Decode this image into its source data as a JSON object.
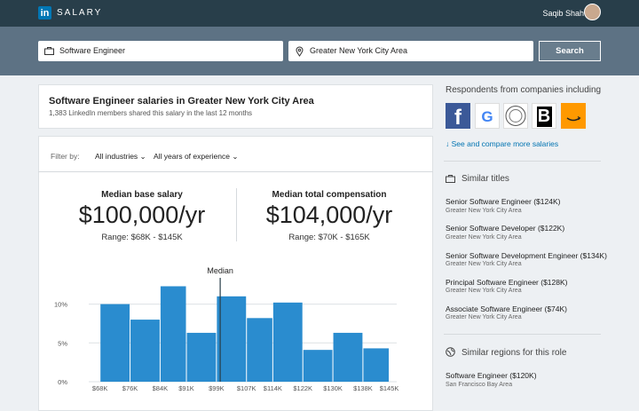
{
  "header": {
    "logo": "in",
    "app": "SALARY",
    "user": "Saqib Shah"
  },
  "search": {
    "title": "Software Engineer",
    "location": "Greater New York City Area",
    "button": "Search"
  },
  "summary": {
    "title": "Software Engineer salaries in Greater New York City Area",
    "subtitle": "1,383 LinkedIn members shared this salary in the last 12 months"
  },
  "filters": {
    "label": "Filter by:",
    "options": [
      "All industries",
      "All years of experience"
    ]
  },
  "stats": [
    {
      "label": "Median base salary",
      "value": "$100,000/yr",
      "range": "Range: $68K - $145K"
    },
    {
      "label": "Median total compensation",
      "value": "$104,000/yr",
      "range": "Range: $70K - $165K"
    }
  ],
  "chart_data": {
    "type": "histogram",
    "annotation": "Median",
    "median": 100,
    "bins": [
      68,
      76,
      84,
      91,
      99,
      107,
      114,
      122,
      130,
      138,
      145
    ],
    "values": [
      10,
      8,
      12.3,
      6.3,
      11,
      8.2,
      10.2,
      4.1,
      6.3,
      4.3
    ],
    "color": "#2a8ccf",
    "grid": true,
    "xlim": [
      65,
      147
    ],
    "xticks": [
      {
        "value": 68,
        "label": "$68K"
      },
      {
        "value": 76,
        "label": "$76K"
      },
      {
        "value": 84,
        "label": "$84K"
      },
      {
        "value": 91,
        "label": "$91K"
      },
      {
        "value": 99,
        "label": "$99K"
      },
      {
        "value": 107,
        "label": "$107K"
      },
      {
        "value": 114,
        "label": "$114K"
      },
      {
        "value": 122,
        "label": "$122K"
      },
      {
        "value": 130,
        "label": "$130K"
      },
      {
        "value": 138,
        "label": "$138K"
      },
      {
        "value": 145,
        "label": "$145K"
      }
    ],
    "ylim": [
      0,
      14.3
    ],
    "yticks": [
      {
        "value": 0,
        "label": "0%"
      },
      {
        "value": 5,
        "label": "5%"
      },
      {
        "value": 10,
        "label": "10%"
      }
    ]
  },
  "sidebar": {
    "respondents": "Respondents from companies including",
    "companies": [
      "f",
      "G",
      "B"
    ],
    "link": "See and compare more salaries",
    "similar_titles": {
      "heading": "Similar titles",
      "items": [
        {
          "title": "Senior Software Engineer ($124K)",
          "region": "Greater New York City Area"
        },
        {
          "title": "Senior Software Developer ($122K)",
          "region": "Greater New York City Area"
        },
        {
          "title": "Senior Software Development Engineer ($134K)",
          "region": "Greater New York City Area"
        },
        {
          "title": "Principal Software Engineer ($128K)",
          "region": "Greater New York City Area"
        },
        {
          "title": "Associate Software Engineer ($74K)",
          "region": "Greater New York City Area"
        }
      ]
    },
    "similar_regions": {
      "heading": "Similar regions for this role",
      "items": [
        {
          "title": "Software Engineer ($120K)",
          "region": "San Francisco Bay Area"
        }
      ]
    }
  }
}
